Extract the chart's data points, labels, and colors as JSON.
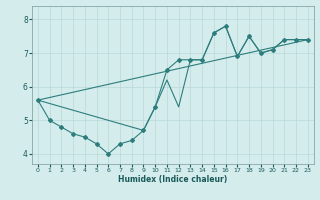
{
  "title": "",
  "xlabel": "Humidex (Indice chaleur)",
  "ylabel": "",
  "bg_color": "#d4ecec",
  "line_color": "#2e7d7d",
  "grid_color": "#b8d8d8",
  "xlim": [
    -0.5,
    23.5
  ],
  "ylim": [
    3.7,
    8.4
  ],
  "yticks": [
    4,
    5,
    6,
    7,
    8
  ],
  "xticks": [
    0,
    1,
    2,
    3,
    4,
    5,
    6,
    7,
    8,
    9,
    10,
    11,
    12,
    13,
    14,
    15,
    16,
    17,
    18,
    19,
    20,
    21,
    22,
    23
  ],
  "series1_x": [
    0,
    1,
    2,
    3,
    4,
    5,
    6,
    7,
    8,
    9,
    10,
    11,
    12,
    13,
    14,
    15,
    16,
    17,
    18,
    19,
    20,
    21,
    22,
    23
  ],
  "series1_y": [
    5.6,
    5.0,
    4.8,
    4.6,
    4.5,
    4.3,
    4.0,
    4.3,
    4.4,
    4.7,
    5.4,
    6.5,
    6.8,
    6.8,
    6.8,
    7.6,
    7.8,
    6.9,
    7.5,
    7.0,
    7.1,
    7.4,
    7.4,
    7.4
  ],
  "series2_x": [
    0,
    9,
    10,
    11,
    12,
    13,
    14,
    15,
    16,
    17,
    18,
    19,
    20,
    21,
    22,
    23
  ],
  "series2_y": [
    5.6,
    4.7,
    5.4,
    6.2,
    5.4,
    6.8,
    6.8,
    7.6,
    7.8,
    6.9,
    7.5,
    7.0,
    7.1,
    7.4,
    7.4,
    7.4
  ],
  "series3_x": [
    0,
    23
  ],
  "series3_y": [
    5.6,
    7.4
  ]
}
